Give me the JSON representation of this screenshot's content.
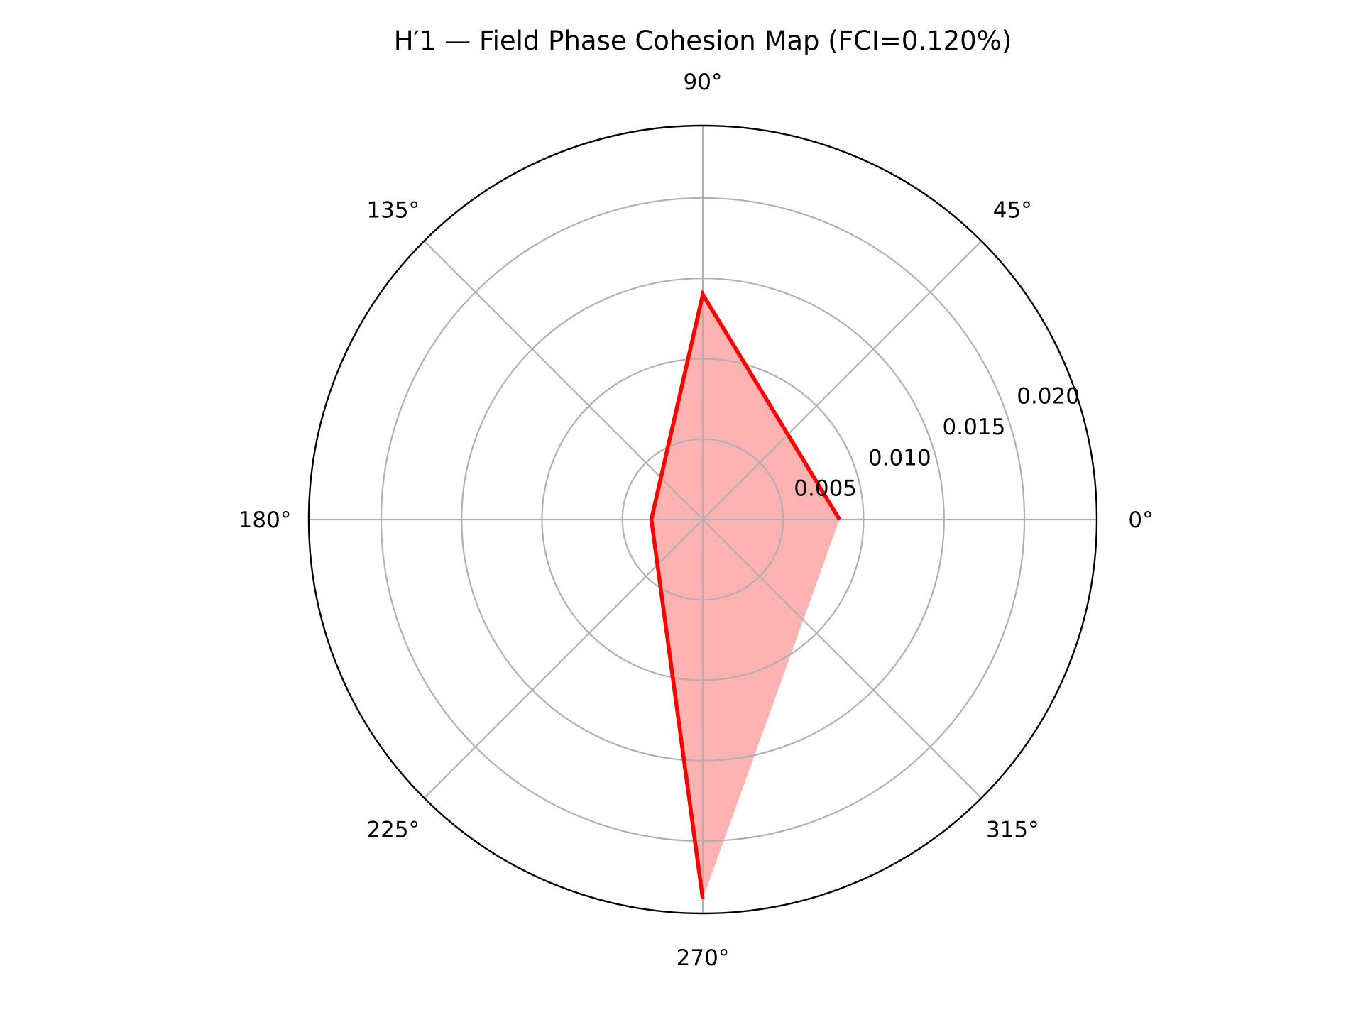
{
  "chart_data": {
    "type": "line",
    "subtype": "polar",
    "title": "H′1 — Field Phase Cohesion Map (FCI=0.120%)",
    "angle_unit": "degrees",
    "theta_ticks": [
      "0°",
      "45°",
      "90°",
      "135°",
      "180°",
      "225°",
      "270°",
      "315°"
    ],
    "theta_tick_values": [
      0,
      45,
      90,
      135,
      180,
      225,
      270,
      315
    ],
    "r_ticks": [
      "0.005",
      "0.010",
      "0.015",
      "0.020"
    ],
    "r_tick_values": [
      0.005,
      0.01,
      0.015,
      0.02
    ],
    "rlim": [
      0,
      0.0245
    ],
    "grid": true,
    "series": [
      {
        "theta": [
          0,
          90,
          180,
          270
        ],
        "r": [
          0.0085,
          0.014,
          0.0032,
          0.0236
        ],
        "color": "#ff0000",
        "fill_color": "#ffb2b2",
        "filled": true,
        "closed": false
      }
    ]
  }
}
